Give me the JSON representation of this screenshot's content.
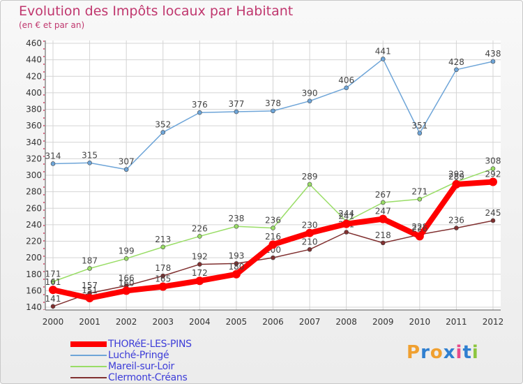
{
  "title": "Evolution des Impôts locaux par Habitant",
  "subtitle": "(en € et par an)",
  "logo": {
    "text": "Proxiti",
    "letters": [
      "P",
      "r",
      "o",
      "x",
      "i",
      "t",
      "i"
    ],
    "colors": [
      "#f0a030",
      "#2f7fd0",
      "#f0a030",
      "#2f7fd0",
      "#e84b8a",
      "#2f7fd0",
      "#8cc63f"
    ]
  },
  "chart_data": {
    "type": "line",
    "title": "Evolution des Impôts locaux par Habitant",
    "subtitle": "(en € et par an)",
    "xlabel": "",
    "ylabel": "",
    "x": [
      "2000",
      "2001",
      "2002",
      "2003",
      "2004",
      "2005",
      "2006",
      "2007",
      "2008",
      "2009",
      "2010",
      "2011",
      "2012"
    ],
    "ylim": [
      140,
      460
    ],
    "yticks": [
      140,
      160,
      180,
      200,
      220,
      240,
      260,
      280,
      300,
      320,
      340,
      360,
      380,
      400,
      420,
      440,
      460
    ],
    "grid": true,
    "legend_position": "bottom-left",
    "series": [
      {
        "name": "THORéE-LES-PINS",
        "color": "#ff0000",
        "values": [
          161,
          151,
          160,
          165,
          172,
          180,
          216,
          230,
          241,
          247,
          226,
          289,
          292
        ],
        "labels": [
          "161",
          "151",
          "160",
          "165",
          "172",
          "180",
          "216",
          "230",
          "241",
          "247",
          "226",
          "289",
          "292"
        ]
      },
      {
        "name": "Luché-Pringé",
        "color": "#6ea5d8",
        "values": [
          314,
          315,
          307,
          352,
          376,
          377,
          378,
          390,
          406,
          441,
          351,
          428,
          438
        ],
        "labels": [
          "314",
          "315",
          "307",
          "352",
          "376",
          "377",
          "378",
          "390",
          "406",
          "441",
          "351",
          "428",
          "438"
        ]
      },
      {
        "name": "Mareil-sur-Loir",
        "color": "#99dd66",
        "values": [
          171,
          187,
          199,
          213,
          226,
          238,
          236,
          289,
          244,
          267,
          271,
          292,
          308
        ],
        "labels": [
          "171",
          "187",
          "199",
          "213",
          "226",
          "238",
          "236",
          "289",
          "244",
          "267",
          "271",
          "292",
          "308"
        ]
      },
      {
        "name": "Clermont-Créans",
        "color": "#803030",
        "values": [
          141,
          157,
          166,
          178,
          192,
          193,
          200,
          210,
          231,
          218,
          228,
          236,
          245
        ],
        "labels": [
          "141",
          "157",
          "166",
          "178",
          "192",
          "193",
          "200",
          "210",
          "231",
          "218",
          "228",
          "236",
          "245"
        ]
      }
    ]
  }
}
